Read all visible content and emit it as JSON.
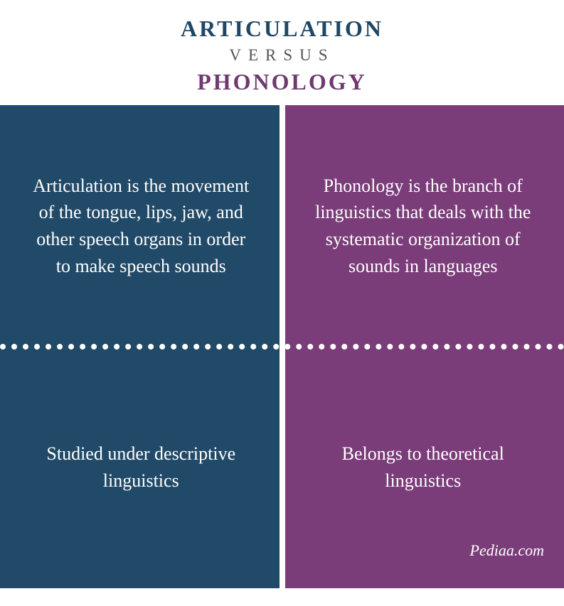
{
  "header": {
    "title1": "ARTICULATION",
    "versus": "VERSUS",
    "title2": "PHONOLOGY",
    "title1_color": "#1f4765",
    "versus_color": "#555555",
    "title2_color": "#6f3a6f"
  },
  "left": {
    "bg": "#214a68",
    "top_text": "Articulation is the movement of the tongue, lips, jaw, and other speech organs in order to make speech sounds",
    "bottom_text": "Studied under descriptive linguistics"
  },
  "right": {
    "bg": "#7a3d79",
    "top_text": "Phonology is the branch of linguistics that deals with the systematic organization of sounds in languages",
    "bottom_text": "Belongs to theoretical linguistics"
  },
  "watermark": "Pediaa.com"
}
